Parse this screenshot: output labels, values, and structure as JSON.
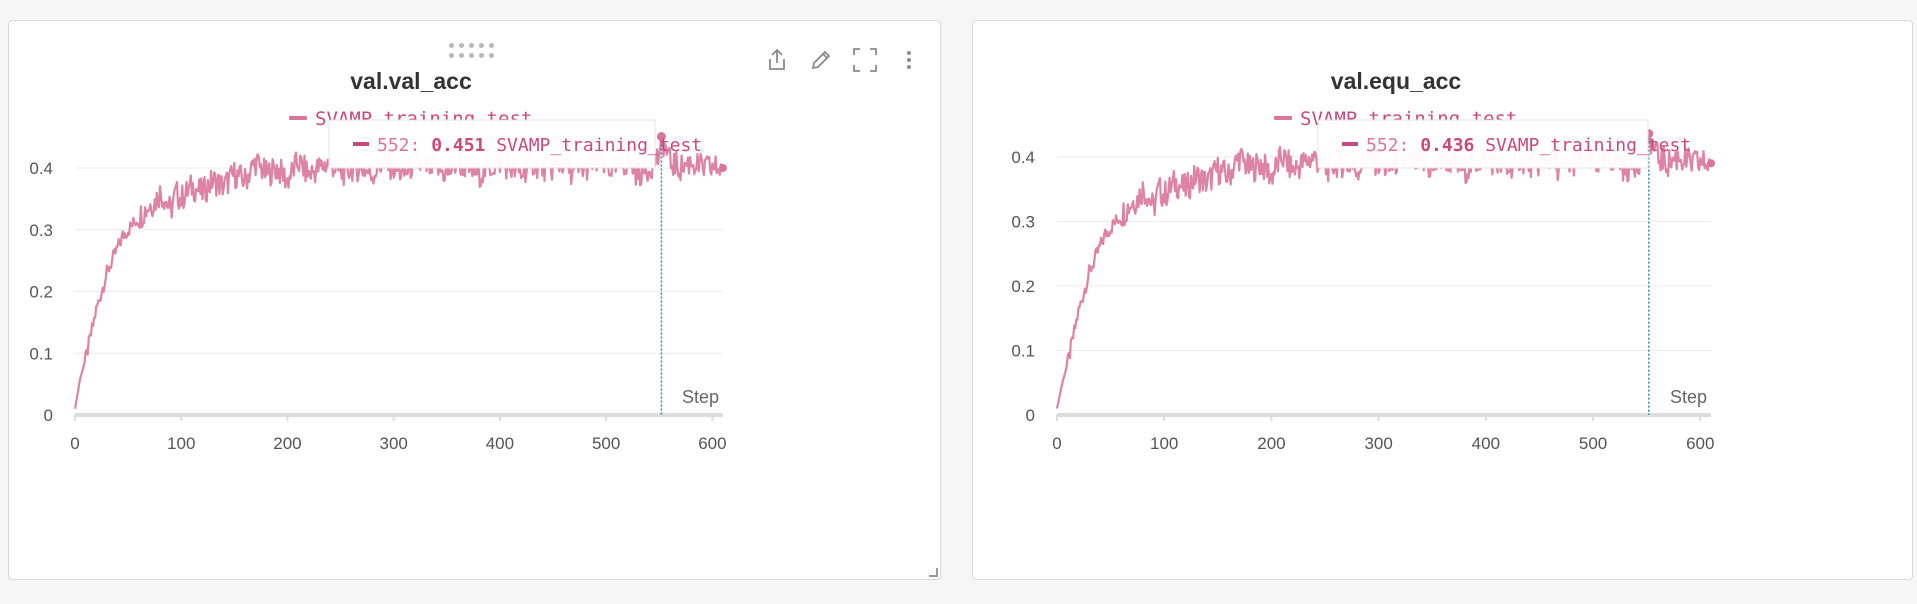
{
  "colors": {
    "series": "#d9769a",
    "series_dark": "#c94a7c",
    "grid": "#ebebeb",
    "axis": "#dcdcdc",
    "hover_line": "#2a8aa8",
    "icon": "#8a8a8a"
  },
  "toolbar": {
    "icons": [
      "share-icon",
      "edit-pencil-icon",
      "fullscreen-icon",
      "more-vertical-icon"
    ]
  },
  "chart_data": [
    {
      "type": "line",
      "title": "val.val_acc",
      "xlabel": "Step",
      "ylabel": "",
      "xlim": [
        0,
        610
      ],
      "ylim": [
        0,
        0.46
      ],
      "xticks": [
        0,
        100,
        200,
        300,
        400,
        500,
        600
      ],
      "yticks": [
        0,
        0.1,
        0.2,
        0.3,
        0.4
      ],
      "ytick_labels": [
        "0",
        "0.1",
        "0.2",
        "0.3",
        "0.4"
      ],
      "legend": {
        "position": "top-center",
        "entries": [
          "SVAMP_training_test"
        ]
      },
      "grid": true,
      "series": [
        {
          "name": "SVAMP_training_test",
          "x": [
            0,
            5,
            10,
            15,
            20,
            25,
            30,
            35,
            40,
            45,
            50,
            55,
            60,
            65,
            70,
            75,
            80,
            85,
            90,
            95,
            100,
            110,
            120,
            130,
            140,
            150,
            160,
            170,
            180,
            190,
            200,
            210,
            220,
            230,
            240,
            250,
            260,
            270,
            280,
            290,
            300,
            310,
            320,
            330,
            340,
            350,
            360,
            370,
            380,
            390,
            400,
            410,
            420,
            430,
            440,
            450,
            460,
            470,
            480,
            490,
            500,
            510,
            520,
            530,
            540,
            550,
            552,
            560,
            570,
            580,
            590,
            600,
            610
          ],
          "y": [
            0.01,
            0.06,
            0.09,
            0.13,
            0.17,
            0.2,
            0.23,
            0.25,
            0.27,
            0.29,
            0.3,
            0.31,
            0.32,
            0.33,
            0.34,
            0.345,
            0.36,
            0.35,
            0.33,
            0.36,
            0.35,
            0.37,
            0.36,
            0.38,
            0.37,
            0.39,
            0.38,
            0.41,
            0.39,
            0.4,
            0.38,
            0.41,
            0.39,
            0.4,
            0.41,
            0.39,
            0.4,
            0.4,
            0.39,
            0.41,
            0.4,
            0.39,
            0.41,
            0.4,
            0.4,
            0.39,
            0.41,
            0.4,
            0.39,
            0.4,
            0.41,
            0.4,
            0.39,
            0.41,
            0.4,
            0.4,
            0.41,
            0.39,
            0.4,
            0.41,
            0.4,
            0.4,
            0.41,
            0.39,
            0.4,
            0.42,
            0.451,
            0.41,
            0.4,
            0.41,
            0.4,
            0.4,
            0.4
          ]
        }
      ],
      "tooltip": {
        "step": "552:",
        "value": "0.451",
        "series": "SVAMP_training_test",
        "x": 552,
        "y": 0.451
      }
    },
    {
      "type": "line",
      "title": "val.equ_acc",
      "xlabel": "Step",
      "ylabel": "",
      "xlim": [
        0,
        610
      ],
      "ylim": [
        0,
        0.44
      ],
      "xticks": [
        0,
        100,
        200,
        300,
        400,
        500,
        600
      ],
      "yticks": [
        0,
        0.1,
        0.2,
        0.3,
        0.4
      ],
      "ytick_labels": [
        "0",
        "0.1",
        "0.2",
        "0.3",
        "0.4"
      ],
      "legend": {
        "position": "top-center",
        "entries": [
          "SVAMP_training_test"
        ]
      },
      "grid": true,
      "series": [
        {
          "name": "SVAMP_training_test",
          "x": [
            0,
            5,
            10,
            15,
            20,
            25,
            30,
            35,
            40,
            45,
            50,
            55,
            60,
            65,
            70,
            75,
            80,
            85,
            90,
            95,
            100,
            110,
            120,
            130,
            140,
            150,
            160,
            170,
            180,
            190,
            200,
            210,
            220,
            230,
            240,
            250,
            260,
            270,
            280,
            290,
            300,
            310,
            320,
            330,
            340,
            350,
            360,
            370,
            380,
            390,
            400,
            410,
            420,
            430,
            440,
            450,
            460,
            470,
            480,
            490,
            500,
            510,
            520,
            530,
            540,
            550,
            552,
            560,
            570,
            580,
            590,
            600,
            610
          ],
          "y": [
            0.01,
            0.05,
            0.08,
            0.12,
            0.16,
            0.19,
            0.22,
            0.24,
            0.26,
            0.28,
            0.29,
            0.3,
            0.31,
            0.32,
            0.33,
            0.335,
            0.35,
            0.34,
            0.32,
            0.35,
            0.34,
            0.36,
            0.35,
            0.37,
            0.36,
            0.38,
            0.37,
            0.4,
            0.38,
            0.39,
            0.37,
            0.4,
            0.38,
            0.39,
            0.4,
            0.38,
            0.39,
            0.39,
            0.38,
            0.4,
            0.39,
            0.38,
            0.4,
            0.39,
            0.39,
            0.38,
            0.4,
            0.39,
            0.38,
            0.39,
            0.4,
            0.39,
            0.38,
            0.4,
            0.39,
            0.39,
            0.4,
            0.38,
            0.39,
            0.4,
            0.39,
            0.39,
            0.4,
            0.38,
            0.39,
            0.41,
            0.436,
            0.4,
            0.39,
            0.4,
            0.39,
            0.39,
            0.39
          ]
        }
      ],
      "tooltip": {
        "step": "552:",
        "value": "0.436",
        "series": "SVAMP_training_test",
        "x": 552,
        "y": 0.436
      }
    }
  ]
}
